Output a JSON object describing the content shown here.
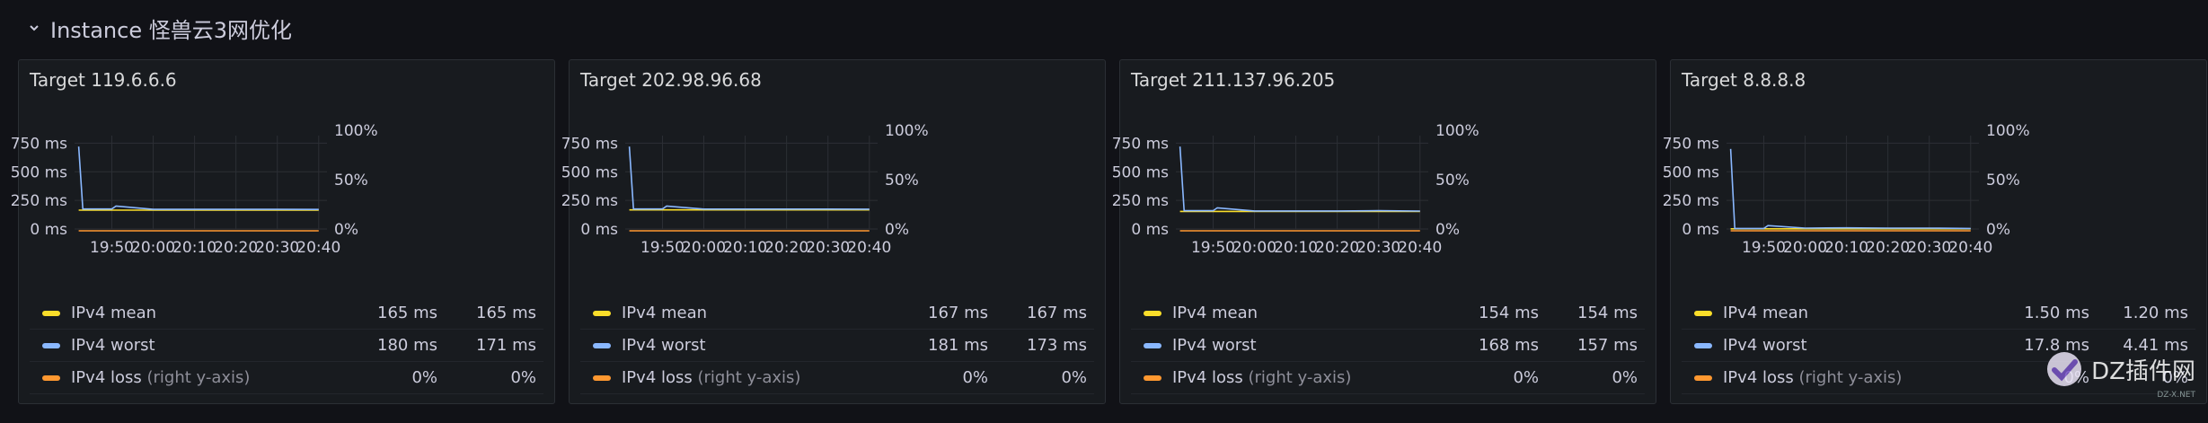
{
  "row": {
    "title": "Instance 怪兽云3网优化"
  },
  "colors": {
    "mean": "#fade2a",
    "worst": "#8ab8ff",
    "loss": "#ff9830",
    "grid": "#2c2f35",
    "axis_text": "#ccccdc"
  },
  "panels": [
    {
      "title": "Target 119.6.6.6",
      "left_ticks": [
        "750 ms",
        "500 ms",
        "250 ms",
        "0 ms"
      ],
      "right_ticks": [
        "100%",
        "50%",
        "0%"
      ],
      "x_ticks": [
        "19:50",
        "20:00",
        "20:10",
        "20:20",
        "20:30",
        "20:40"
      ],
      "legend": [
        {
          "name": "IPv4 mean",
          "suffix": "",
          "v1": "165 ms",
          "v2": "165 ms"
        },
        {
          "name": "IPv4 worst",
          "suffix": "",
          "v1": "180 ms",
          "v2": "171 ms"
        },
        {
          "name": "IPv4 loss",
          "suffix": " (right y-axis)",
          "v1": "0%",
          "v2": "0%"
        }
      ]
    },
    {
      "title": "Target 202.98.96.68",
      "left_ticks": [
        "750 ms",
        "500 ms",
        "250 ms",
        "0 ms"
      ],
      "right_ticks": [
        "100%",
        "50%",
        "0%"
      ],
      "x_ticks": [
        "19:50",
        "20:00",
        "20:10",
        "20:20",
        "20:30",
        "20:40"
      ],
      "legend": [
        {
          "name": "IPv4 mean",
          "suffix": "",
          "v1": "167 ms",
          "v2": "167 ms"
        },
        {
          "name": "IPv4 worst",
          "suffix": "",
          "v1": "181 ms",
          "v2": "173 ms"
        },
        {
          "name": "IPv4 loss",
          "suffix": " (right y-axis)",
          "v1": "0%",
          "v2": "0%"
        }
      ]
    },
    {
      "title": "Target 211.137.96.205",
      "left_ticks": [
        "750 ms",
        "500 ms",
        "250 ms",
        "0 ms"
      ],
      "right_ticks": [
        "100%",
        "50%",
        "0%"
      ],
      "x_ticks": [
        "19:50",
        "20:00",
        "20:10",
        "20:20",
        "20:30",
        "20:40"
      ],
      "legend": [
        {
          "name": "IPv4 mean",
          "suffix": "",
          "v1": "154 ms",
          "v2": "154 ms"
        },
        {
          "name": "IPv4 worst",
          "suffix": "",
          "v1": "168 ms",
          "v2": "157 ms"
        },
        {
          "name": "IPv4 loss",
          "suffix": " (right y-axis)",
          "v1": "0%",
          "v2": "0%"
        }
      ]
    },
    {
      "title": "Target 8.8.8.8",
      "left_ticks": [
        "750 ms",
        "500 ms",
        "250 ms",
        "0 ms"
      ],
      "right_ticks": [
        "100%",
        "50%",
        "0%"
      ],
      "x_ticks": [
        "19:50",
        "20:00",
        "20:10",
        "20:20",
        "20:30",
        "20:40"
      ],
      "legend": [
        {
          "name": "IPv4 mean",
          "suffix": "",
          "v1": "1.50 ms",
          "v2": "1.20 ms"
        },
        {
          "name": "IPv4 worst",
          "suffix": "",
          "v1": "17.8 ms",
          "v2": "4.41 ms"
        },
        {
          "name": "IPv4 loss",
          "suffix": " (right y-axis)",
          "v1": "0%",
          "v2": "0%"
        }
      ]
    }
  ],
  "chart_data": [
    {
      "type": "line",
      "title": "Target 119.6.6.6",
      "xlabel": "",
      "ylabel": "",
      "x": [
        "19:42",
        "19:43",
        "19:50",
        "19:51",
        "20:00",
        "20:10",
        "20:20",
        "20:30",
        "20:40"
      ],
      "ylim": [
        0,
        800
      ],
      "y2lim": [
        0,
        100
      ],
      "grid": true,
      "legend_placement": "bottom",
      "series": [
        {
          "name": "IPv4 mean",
          "values": [
            165,
            165,
            165,
            165,
            165,
            165,
            165,
            165,
            165
          ]
        },
        {
          "name": "IPv4 worst",
          "values": [
            720,
            175,
            175,
            200,
            172,
            172,
            172,
            172,
            171
          ]
        },
        {
          "name": "IPv4 loss",
          "axis": "right",
          "values": [
            0,
            0,
            0,
            0,
            0,
            0,
            0,
            0,
            0
          ]
        }
      ]
    },
    {
      "type": "line",
      "title": "Target 202.98.96.68",
      "xlabel": "",
      "ylabel": "",
      "x": [
        "19:42",
        "19:43",
        "19:50",
        "19:51",
        "20:00",
        "20:10",
        "20:20",
        "20:30",
        "20:40"
      ],
      "ylim": [
        0,
        800
      ],
      "y2lim": [
        0,
        100
      ],
      "grid": true,
      "legend_placement": "bottom",
      "series": [
        {
          "name": "IPv4 mean",
          "values": [
            167,
            167,
            167,
            167,
            167,
            167,
            167,
            167,
            167
          ]
        },
        {
          "name": "IPv4 worst",
          "values": [
            720,
            175,
            175,
            200,
            174,
            174,
            174,
            174,
            173
          ]
        },
        {
          "name": "IPv4 loss",
          "axis": "right",
          "values": [
            0,
            0,
            0,
            0,
            0,
            0,
            0,
            0,
            0
          ]
        }
      ]
    },
    {
      "type": "line",
      "title": "Target 211.137.96.205",
      "xlabel": "",
      "ylabel": "",
      "x": [
        "19:42",
        "19:43",
        "19:50",
        "19:51",
        "20:00",
        "20:10",
        "20:20",
        "20:30",
        "20:40"
      ],
      "ylim": [
        0,
        800
      ],
      "y2lim": [
        0,
        100
      ],
      "grid": true,
      "legend_placement": "bottom",
      "series": [
        {
          "name": "IPv4 mean",
          "values": [
            154,
            154,
            154,
            154,
            154,
            154,
            154,
            154,
            154
          ]
        },
        {
          "name": "IPv4 worst",
          "values": [
            720,
            160,
            160,
            185,
            158,
            158,
            158,
            160,
            157
          ]
        },
        {
          "name": "IPv4 loss",
          "axis": "right",
          "values": [
            0,
            0,
            0,
            0,
            0,
            0,
            0,
            0,
            0
          ]
        }
      ]
    },
    {
      "type": "line",
      "title": "Target 8.8.8.8",
      "xlabel": "",
      "ylabel": "",
      "x": [
        "19:42",
        "19:43",
        "19:50",
        "19:51",
        "20:00",
        "20:10",
        "20:20",
        "20:30",
        "20:40"
      ],
      "ylim": [
        0,
        800
      ],
      "y2lim": [
        0,
        100
      ],
      "grid": true,
      "legend_placement": "bottom",
      "series": [
        {
          "name": "IPv4 mean",
          "values": [
            1.5,
            1.5,
            1.5,
            1.5,
            1.5,
            1.5,
            1.5,
            1.5,
            1.2
          ]
        },
        {
          "name": "IPv4 worst",
          "values": [
            700,
            5,
            5,
            30,
            8,
            10,
            8,
            8,
            4.41
          ]
        },
        {
          "name": "IPv4 loss",
          "axis": "right",
          "values": [
            0,
            0,
            0,
            0,
            0,
            0,
            0,
            0,
            0
          ]
        }
      ]
    }
  ],
  "watermark": {
    "text": "DZ插件网",
    "sub": "DZ-X.NET"
  }
}
